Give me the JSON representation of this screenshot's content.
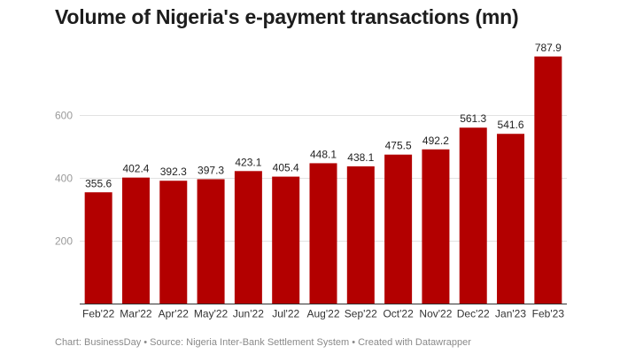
{
  "chart_data": {
    "type": "bar",
    "title": "Volume of Nigeria's e-payment transactions (mn)",
    "categories": [
      "Feb'22",
      "Mar'22",
      "Apr'22",
      "May'22",
      "Jun'22",
      "Jul'22",
      "Aug'22",
      "Sep'22",
      "Oct'22",
      "Nov'22",
      "Dec'22",
      "Jan'23",
      "Feb'23"
    ],
    "values": [
      355.6,
      402.4,
      392.3,
      397.3,
      423.1,
      405.4,
      448.1,
      438.1,
      475.5,
      492.2,
      561.3,
      541.6,
      787.9
    ],
    "value_labels": [
      "355.6",
      "402.4",
      "392.3",
      "397.3",
      "423.1",
      "405.4",
      "448.1",
      "438.1",
      "475.5",
      "492.2",
      "561.3",
      "541.6",
      "787.9"
    ],
    "yticks": [
      200,
      400,
      600
    ],
    "ytick_labels": [
      "200",
      "400",
      "600"
    ],
    "ylim": [
      0,
      800
    ],
    "grid": true,
    "bar_color": "#b30000",
    "footer": "Chart: BusinessDay • Source: Nigeria Inter-Bank Settlement System • Created with Datawrapper"
  }
}
